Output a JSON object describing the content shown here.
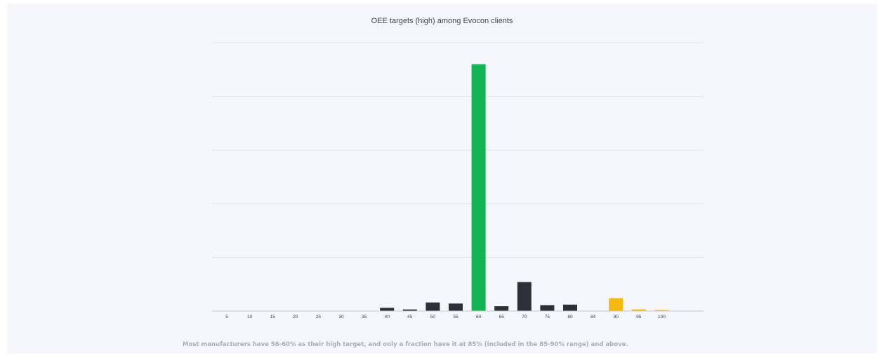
{
  "chart_data": {
    "type": "bar",
    "title": "OEE targets (high) among Evocon clients",
    "xlabel": "",
    "ylabel": "",
    "categories": [
      "5",
      "10",
      "15",
      "20",
      "25",
      "30",
      "35",
      "40",
      "45",
      "50",
      "55",
      "60",
      "65",
      "70",
      "75",
      "80",
      "84",
      "90",
      "95",
      "100"
    ],
    "values": [
      0,
      0,
      0,
      0,
      0,
      0,
      0,
      0.6,
      0.3,
      1.6,
      1.4,
      46.0,
      0.9,
      5.4,
      1.1,
      1.2,
      0,
      2.4,
      0.3,
      0.2
    ],
    "bar_colors": [
      "#2d3038",
      "#2d3038",
      "#2d3038",
      "#2d3038",
      "#2d3038",
      "#2d3038",
      "#2d3038",
      "#2d3038",
      "#2d3038",
      "#2d3038",
      "#2d3038",
      "#12b454",
      "#2d3038",
      "#2d3038",
      "#2d3038",
      "#2d3038",
      "#2d3038",
      "#f5b90d",
      "#f5b90d",
      "#f5b90d"
    ],
    "ylim": [
      0,
      50
    ],
    "gridlines": [
      10,
      20,
      30,
      40,
      50
    ],
    "grid": true,
    "legend": "none"
  },
  "caption": "Most manufacturers have 56-60% as their high target, and only a fraction have it at 85% (included in the 85-90% range) and above."
}
